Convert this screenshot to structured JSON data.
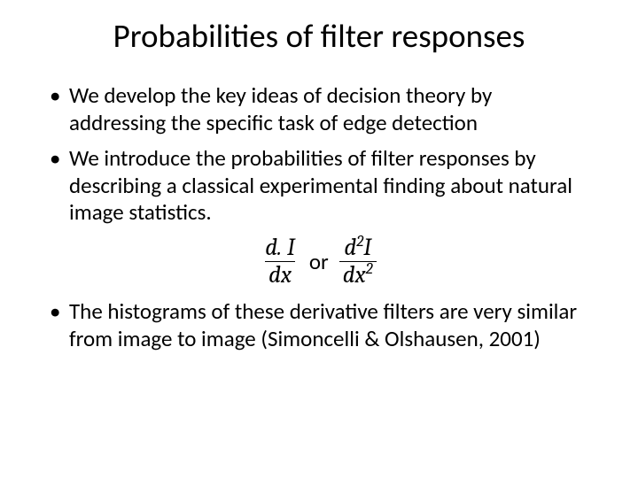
{
  "slide": {
    "title": "Probabilities of filter responses",
    "bullets": [
      "We develop the key ideas of decision theory by addressing the specific task of edge detection",
      "We introduce the probabilities of filter responses by describing a classical experimental finding about natural image statistics.",
      "The histograms of these derivative filters are very similar from image to image (Simoncelli & Olshausen, 2001)"
    ],
    "equation": {
      "frac1_num": "d. I",
      "frac1_den": "dx",
      "connector": "or",
      "frac2_num_prefix": "d",
      "frac2_num_sup": "2",
      "frac2_num_suffix": "I",
      "frac2_den_prefix": "dx",
      "frac2_den_sup": "2"
    },
    "colors": {
      "background": "#ffffff",
      "text": "#000000"
    },
    "typography": {
      "title_fontsize_pt": 28,
      "body_fontsize_pt": 19,
      "equation_fontsize_pt": 20,
      "title_font": "Calibri",
      "body_font": "Calibri",
      "equation_font": "Cambria Math"
    }
  }
}
